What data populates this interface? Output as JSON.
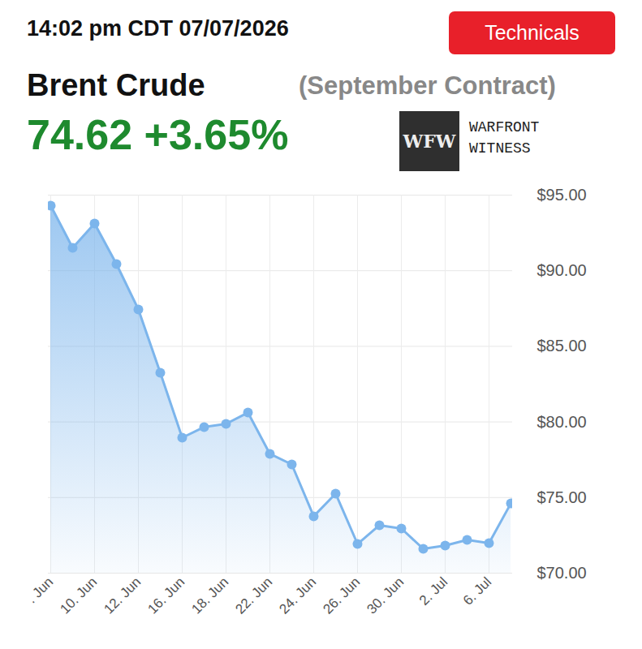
{
  "header": {
    "timestamp": "14:02 pm CDT 07/07/2026",
    "button": "Technicals",
    "price": "74.62",
    "change": "+3.65%",
    "logo_mark": "WFW",
    "logo_text": [
      "WARFRONT",
      "WITNESS"
    ]
  },
  "chart_data": {
    "type": "area",
    "title": "Brent Crude",
    "subtitle": "(September Contract)",
    "categories": [
      ". Jun",
      null,
      "10. Jun",
      null,
      "12. Jun",
      null,
      "16. Jun",
      null,
      "18. Jun",
      null,
      "22. Jun",
      null,
      "24. Jun",
      null,
      "26. Jun",
      null,
      "30. Jun",
      null,
      "2. Jul",
      null,
      "6. Jul",
      null
    ],
    "values": [
      94.3,
      91.51,
      93.12,
      90.44,
      87.44,
      83.25,
      78.96,
      79.66,
      79.87,
      80.62,
      77.89,
      77.19,
      73.76,
      75.26,
      71.93,
      73.17,
      72.95,
      71.61,
      71.82,
      72.2,
      71.98,
      74.62
    ],
    "color": "#7cb5ec",
    "marker": "circle",
    "grid": true,
    "ylim": [
      70,
      95
    ],
    "yticks": [
      {
        "value": 70,
        "label": "$70.00"
      },
      {
        "value": 75,
        "label": "$75.00"
      },
      {
        "value": 80,
        "label": "$80.00"
      },
      {
        "value": 85,
        "label": "$85.00"
      },
      {
        "value": 90,
        "label": "$90.00"
      },
      {
        "value": 95,
        "label": "$95.00"
      }
    ]
  }
}
